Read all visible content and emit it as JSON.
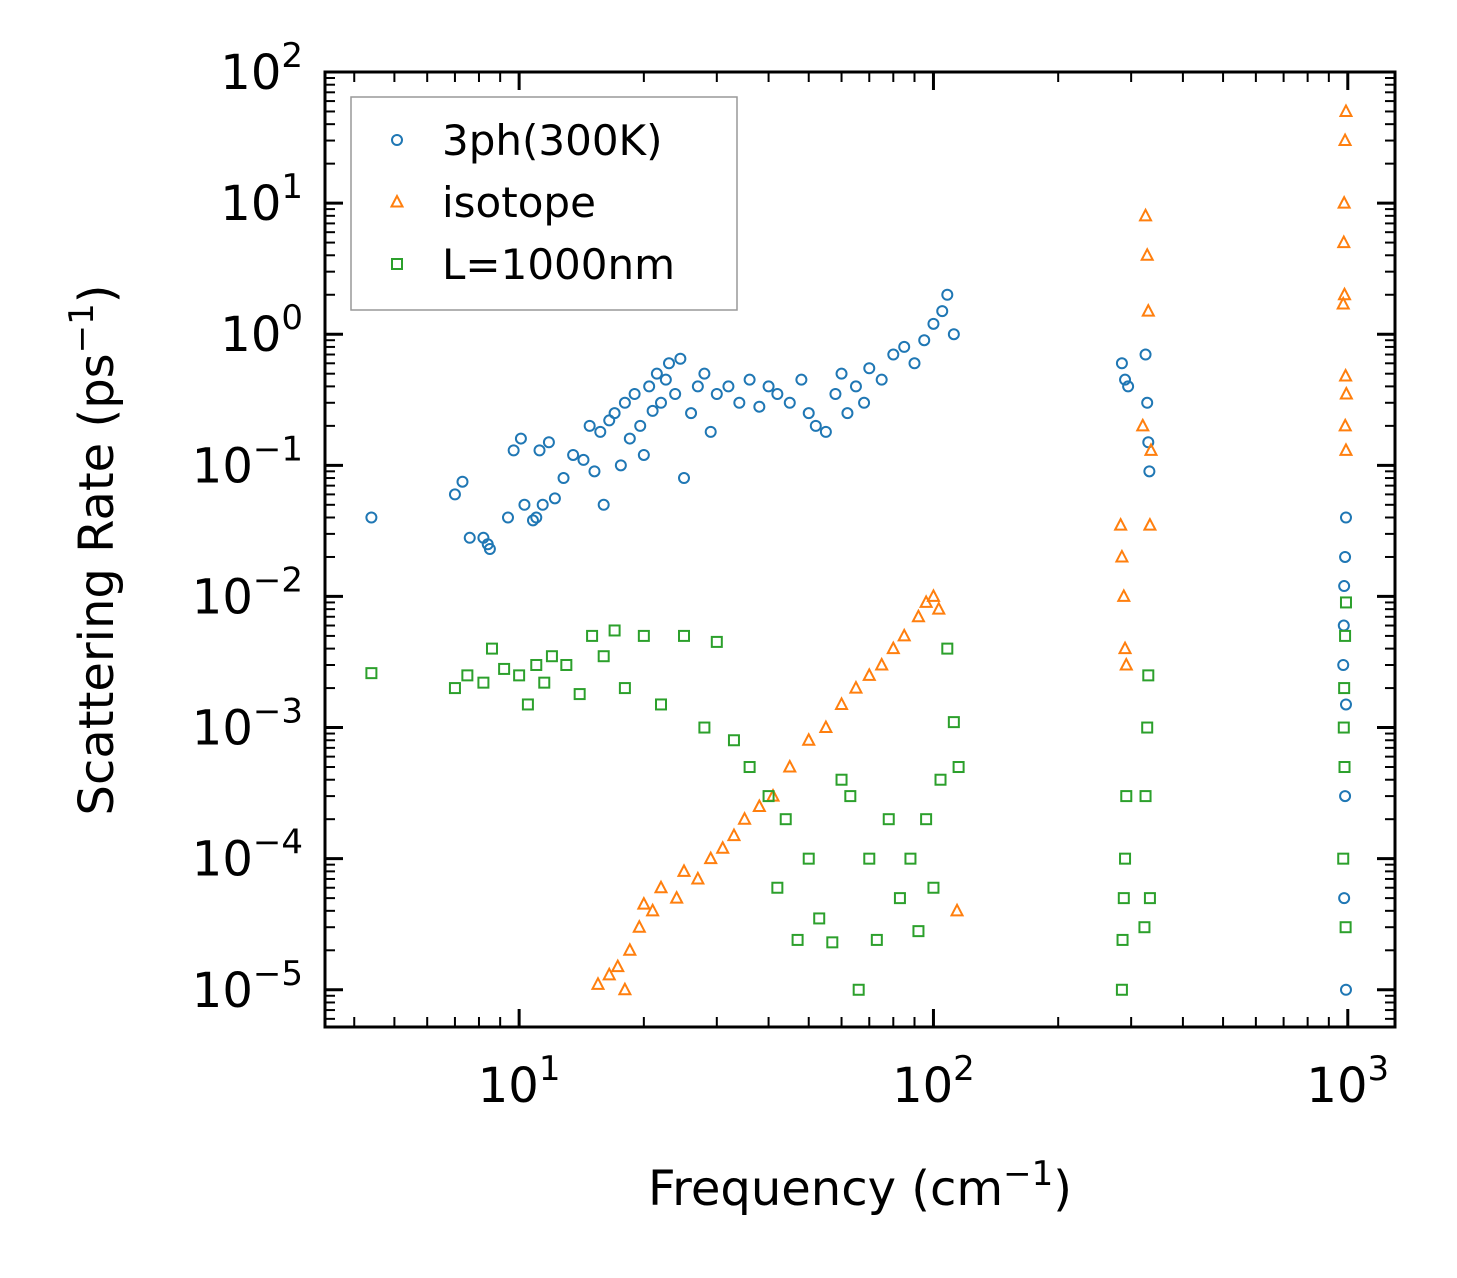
{
  "chart_data": {
    "type": "scatter",
    "xlabel": "Frequency (cm",
    "xlabel_sup": "−1",
    "xlabel_end": ")",
    "ylabel": "Scattering Rate (ps",
    "ylabel_sup": "−1",
    "ylabel_end": ")",
    "xscale": "log",
    "yscale": "log",
    "xlim": [
      3.4,
      1300
    ],
    "ylim": [
      5.2e-06,
      100
    ],
    "grid": false,
    "legend_position": "top-left",
    "x_ticks": [
      {
        "value": 10,
        "base": "10",
        "exp": "1"
      },
      {
        "value": 100,
        "base": "10",
        "exp": "2"
      },
      {
        "value": 1000,
        "base": "10",
        "exp": "3"
      }
    ],
    "y_ticks": [
      {
        "value": 1e-05,
        "base": "10",
        "exp": "−5"
      },
      {
        "value": 0.0001,
        "base": "10",
        "exp": "−4"
      },
      {
        "value": 0.001,
        "base": "10",
        "exp": "−3"
      },
      {
        "value": 0.01,
        "base": "10",
        "exp": "−2"
      },
      {
        "value": 0.1,
        "base": "10",
        "exp": "−1"
      },
      {
        "value": 1,
        "base": "10",
        "exp": "0"
      },
      {
        "value": 10,
        "base": "10",
        "exp": "1"
      },
      {
        "value": 100,
        "base": "10",
        "exp": "2"
      }
    ],
    "series": [
      {
        "name": "3ph(300K)",
        "marker": "circle",
        "color": "#1f77b4",
        "points": [
          [
            4.4,
            0.04
          ],
          [
            7.0,
            0.06
          ],
          [
            7.3,
            0.075
          ],
          [
            7.6,
            0.028
          ],
          [
            8.2,
            0.028
          ],
          [
            8.4,
            0.025
          ],
          [
            8.5,
            0.023
          ],
          [
            9.4,
            0.04
          ],
          [
            9.7,
            0.13
          ],
          [
            10.1,
            0.16
          ],
          [
            10.3,
            0.05
          ],
          [
            10.8,
            0.038
          ],
          [
            11.0,
            0.04
          ],
          [
            11.2,
            0.13
          ],
          [
            11.4,
            0.05
          ],
          [
            11.8,
            0.15
          ],
          [
            12.2,
            0.056
          ],
          [
            12.8,
            0.08
          ],
          [
            13.5,
            0.12
          ],
          [
            14.3,
            0.11
          ],
          [
            14.8,
            0.2
          ],
          [
            15.2,
            0.09
          ],
          [
            15.7,
            0.18
          ],
          [
            16.0,
            0.05
          ],
          [
            16.5,
            0.22
          ],
          [
            17.0,
            0.25
          ],
          [
            17.6,
            0.1
          ],
          [
            18.0,
            0.3
          ],
          [
            18.5,
            0.16
          ],
          [
            19.0,
            0.35
          ],
          [
            19.6,
            0.2
          ],
          [
            20.0,
            0.12
          ],
          [
            20.6,
            0.4
          ],
          [
            21.0,
            0.26
          ],
          [
            21.5,
            0.5
          ],
          [
            22.0,
            0.3
          ],
          [
            22.6,
            0.45
          ],
          [
            23.0,
            0.6
          ],
          [
            23.8,
            0.35
          ],
          [
            24.5,
            0.65
          ],
          [
            25.0,
            0.08
          ],
          [
            26.0,
            0.25
          ],
          [
            27.0,
            0.4
          ],
          [
            28.0,
            0.5
          ],
          [
            29.0,
            0.18
          ],
          [
            30.0,
            0.35
          ],
          [
            32.0,
            0.4
          ],
          [
            34.0,
            0.3
          ],
          [
            36.0,
            0.45
          ],
          [
            38.0,
            0.28
          ],
          [
            40.0,
            0.4
          ],
          [
            42.0,
            0.35
          ],
          [
            45.0,
            0.3
          ],
          [
            48.0,
            0.45
          ],
          [
            50.0,
            0.25
          ],
          [
            52.0,
            0.2
          ],
          [
            55.0,
            0.18
          ],
          [
            58.0,
            0.35
          ],
          [
            60.0,
            0.5
          ],
          [
            62.0,
            0.25
          ],
          [
            65.0,
            0.4
          ],
          [
            68.0,
            0.3
          ],
          [
            70.0,
            0.55
          ],
          [
            75.0,
            0.45
          ],
          [
            80.0,
            0.7
          ],
          [
            85.0,
            0.8
          ],
          [
            90.0,
            0.6
          ],
          [
            95.0,
            0.9
          ],
          [
            100.0,
            1.2
          ],
          [
            105.0,
            1.5
          ],
          [
            108.0,
            2.0
          ],
          [
            112.0,
            1.0
          ],
          [
            285,
            0.6
          ],
          [
            290,
            0.45
          ],
          [
            295,
            0.4
          ],
          [
            325,
            0.7
          ],
          [
            328,
            0.3
          ],
          [
            330,
            0.15
          ],
          [
            332,
            0.09
          ],
          [
            990,
            0.04
          ],
          [
            985,
            0.02
          ],
          [
            980,
            0.012
          ],
          [
            978,
            0.006
          ],
          [
            975,
            0.003
          ],
          [
            990,
            0.0015
          ],
          [
            985,
            0.0003
          ],
          [
            980,
            5e-05
          ],
          [
            990,
            1e-05
          ]
        ]
      },
      {
        "name": "isotope",
        "marker": "triangle",
        "color": "#ff7f0e",
        "points": [
          [
            15.5,
            1.1e-05
          ],
          [
            16.5,
            1.3e-05
          ],
          [
            17.3,
            1.5e-05
          ],
          [
            18.0,
            1e-05
          ],
          [
            18.5,
            2e-05
          ],
          [
            19.5,
            3e-05
          ],
          [
            20.0,
            4.5e-05
          ],
          [
            21.0,
            4e-05
          ],
          [
            22.0,
            6e-05
          ],
          [
            24.0,
            5e-05
          ],
          [
            25.0,
            8e-05
          ],
          [
            27.0,
            7e-05
          ],
          [
            29.0,
            0.0001
          ],
          [
            31.0,
            0.00012
          ],
          [
            33.0,
            0.00015
          ],
          [
            35.0,
            0.0002
          ],
          [
            38.0,
            0.00025
          ],
          [
            41.0,
            0.0003
          ],
          [
            45.0,
            0.0005
          ],
          [
            50.0,
            0.0008
          ],
          [
            55.0,
            0.001
          ],
          [
            60.0,
            0.0015
          ],
          [
            65.0,
            0.002
          ],
          [
            70.0,
            0.0025
          ],
          [
            75.0,
            0.003
          ],
          [
            80.0,
            0.004
          ],
          [
            85.0,
            0.005
          ],
          [
            92.0,
            0.007
          ],
          [
            96.0,
            0.009
          ],
          [
            100.0,
            0.01
          ],
          [
            103.0,
            0.008
          ],
          [
            114.0,
            4e-05
          ],
          [
            283,
            0.035
          ],
          [
            285,
            0.02
          ],
          [
            288,
            0.01
          ],
          [
            290,
            0.004
          ],
          [
            292,
            0.003
          ],
          [
            325,
            8.0
          ],
          [
            328,
            4.0
          ],
          [
            330,
            1.5
          ],
          [
            320,
            0.2
          ],
          [
            335,
            0.13
          ],
          [
            333,
            0.035
          ],
          [
            990,
            50
          ],
          [
            985,
            30
          ],
          [
            980,
            10
          ],
          [
            978,
            5
          ],
          [
            982,
            2.0
          ],
          [
            975,
            1.7
          ],
          [
            988,
            0.48
          ],
          [
            992,
            0.35
          ],
          [
            986,
            0.2
          ],
          [
            990,
            0.13
          ]
        ]
      },
      {
        "name": "L=1000nm",
        "marker": "square",
        "color": "#2ca02c",
        "points": [
          [
            4.4,
            0.0026
          ],
          [
            7.0,
            0.002
          ],
          [
            7.5,
            0.0025
          ],
          [
            8.2,
            0.0022
          ],
          [
            8.6,
            0.004
          ],
          [
            9.2,
            0.0028
          ],
          [
            10.0,
            0.0025
          ],
          [
            10.5,
            0.0015
          ],
          [
            11.0,
            0.003
          ],
          [
            11.5,
            0.0022
          ],
          [
            12.0,
            0.0035
          ],
          [
            13.0,
            0.003
          ],
          [
            14.0,
            0.0018
          ],
          [
            15.0,
            0.005
          ],
          [
            16.0,
            0.0035
          ],
          [
            17.0,
            0.0055
          ],
          [
            18.0,
            0.002
          ],
          [
            20.0,
            0.005
          ],
          [
            22.0,
            0.0015
          ],
          [
            25.0,
            0.005
          ],
          [
            28.0,
            0.001
          ],
          [
            30.0,
            0.0045
          ],
          [
            33.0,
            0.0008
          ],
          [
            36.0,
            0.0005
          ],
          [
            40.0,
            0.0003
          ],
          [
            42.0,
            6e-05
          ],
          [
            44.0,
            0.0002
          ],
          [
            47.0,
            2.4e-05
          ],
          [
            50.0,
            0.0001
          ],
          [
            53.0,
            3.5e-05
          ],
          [
            57.0,
            2.3e-05
          ],
          [
            60.0,
            0.0004
          ],
          [
            63.0,
            0.0003
          ],
          [
            66.0,
            1e-05
          ],
          [
            70.0,
            0.0001
          ],
          [
            73.0,
            2.4e-05
          ],
          [
            78.0,
            0.0002
          ],
          [
            83.0,
            5e-05
          ],
          [
            88.0,
            0.0001
          ],
          [
            92.0,
            2.8e-05
          ],
          [
            96.0,
            0.0002
          ],
          [
            100.0,
            6e-05
          ],
          [
            104.0,
            0.0004
          ],
          [
            108.0,
            0.004
          ],
          [
            112.0,
            0.0011
          ],
          [
            115.0,
            0.0005
          ],
          [
            285,
            1e-05
          ],
          [
            286,
            2.4e-05
          ],
          [
            288,
            5e-05
          ],
          [
            290,
            0.0001
          ],
          [
            292,
            0.0003
          ],
          [
            323,
            3e-05
          ],
          [
            325,
            0.0003
          ],
          [
            328,
            0.001
          ],
          [
            330,
            0.0025
          ],
          [
            333,
            5e-05
          ],
          [
            990,
            0.009
          ],
          [
            985,
            0.005
          ],
          [
            980,
            0.002
          ],
          [
            978,
            0.001
          ],
          [
            982,
            0.0005
          ],
          [
            975,
            0.0001
          ],
          [
            988,
            3e-05
          ]
        ]
      }
    ]
  }
}
